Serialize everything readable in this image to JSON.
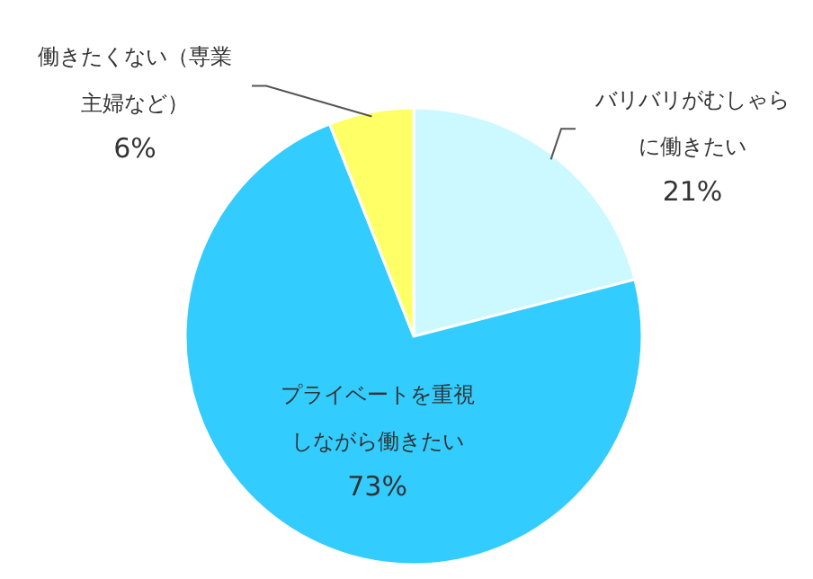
{
  "chart_data": {
    "type": "pie",
    "categories": [
      "バリバリがむしゃらに働きたい",
      "プライベートを重視しながら働きたい",
      "働きたくない（専業主婦など）"
    ],
    "values": [
      21,
      73,
      6
    ],
    "colors": [
      "#ccf8ff",
      "#33ccff",
      "#ffff66"
    ],
    "value_labels": [
      "21%",
      "73%",
      "6%"
    ]
  }
}
